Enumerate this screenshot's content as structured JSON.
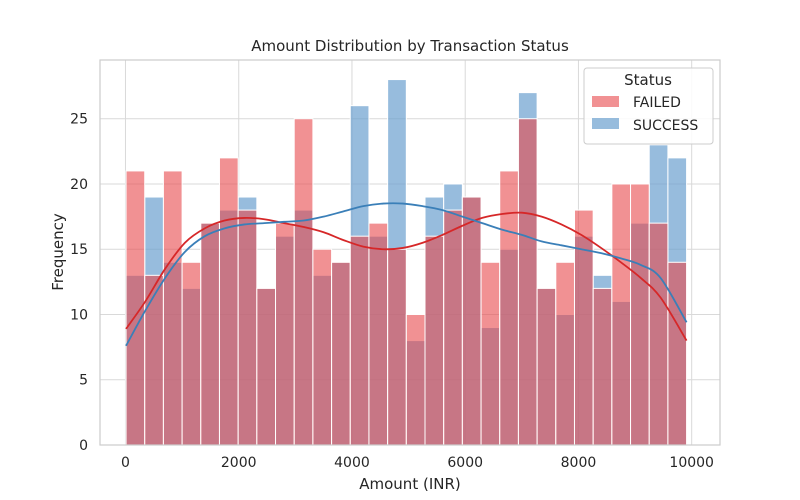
{
  "chart_data": {
    "type": "bar",
    "title": "Amount Distribution by Transaction Status",
    "xlabel": "Amount (INR)",
    "ylabel": "Frequency",
    "xlim": [
      -450,
      10500
    ],
    "ylim": [
      0,
      29.5
    ],
    "xticks": [
      0,
      2000,
      4000,
      6000,
      8000,
      10000
    ],
    "yticks": [
      0,
      5,
      10,
      15,
      20,
      25
    ],
    "grid": true,
    "legend": {
      "title": "Status",
      "position": "top-right"
    },
    "bin_edges": [
      10,
      340,
      670,
      1000,
      1330,
      1660,
      1990,
      2320,
      2650,
      2980,
      3310,
      3640,
      3970,
      4300,
      4630,
      4960,
      5290,
      5620,
      5950,
      6280,
      6610,
      6940,
      7270,
      7600,
      7930,
      8260,
      8590,
      8920,
      9250,
      9580,
      9910
    ],
    "series": [
      {
        "name": "FAILED",
        "color": "#e8474b",
        "values": [
          21,
          13,
          21,
          14,
          17,
          22,
          18,
          12,
          17,
          25,
          15,
          14,
          16,
          17,
          15,
          10,
          16,
          18,
          19,
          14,
          21,
          25,
          12,
          14,
          18,
          12,
          20,
          20,
          17,
          14
        ],
        "kde_x": [
          10,
          350,
          700,
          1050,
          1400,
          1750,
          2100,
          2450,
          2800,
          3150,
          3500,
          3850,
          4200,
          4550,
          4900,
          5250,
          5600,
          5950,
          6300,
          6650,
          7000,
          7350,
          7700,
          8050,
          8400,
          8750,
          9100,
          9450,
          9910
        ],
        "kde_y": [
          8.9,
          11.0,
          13.5,
          15.5,
          16.6,
          17.2,
          17.4,
          17.3,
          17.0,
          16.7,
          16.3,
          15.7,
          15.2,
          15.0,
          15.1,
          15.5,
          16.1,
          16.8,
          17.4,
          17.7,
          17.8,
          17.5,
          16.9,
          16.1,
          15.1,
          14.0,
          12.8,
          11.3,
          8.0
        ]
      },
      {
        "name": "SUCCESS",
        "color": "#6b9fcf",
        "values": [
          13,
          19,
          14,
          12,
          17,
          18,
          19,
          12,
          16,
          18,
          13,
          14,
          26,
          16,
          28,
          8,
          19,
          20,
          19,
          9,
          15,
          27,
          12,
          10,
          16,
          13,
          11,
          17,
          23,
          22
        ],
        "kde_x": [
          10,
          350,
          700,
          1050,
          1400,
          1750,
          2100,
          2450,
          2800,
          3150,
          3500,
          3850,
          4200,
          4550,
          4900,
          5250,
          5600,
          5950,
          6300,
          6650,
          7000,
          7350,
          7700,
          8050,
          8400,
          8750,
          9100,
          9450,
          9910
        ],
        "kde_y": [
          7.6,
          10.3,
          12.8,
          14.8,
          16.0,
          16.6,
          16.9,
          17.0,
          17.1,
          17.2,
          17.5,
          17.9,
          18.3,
          18.5,
          18.5,
          18.3,
          18.0,
          17.5,
          17.0,
          16.5,
          16.1,
          15.6,
          15.3,
          15.0,
          14.7,
          14.3,
          13.8,
          12.8,
          9.4
        ]
      }
    ]
  }
}
